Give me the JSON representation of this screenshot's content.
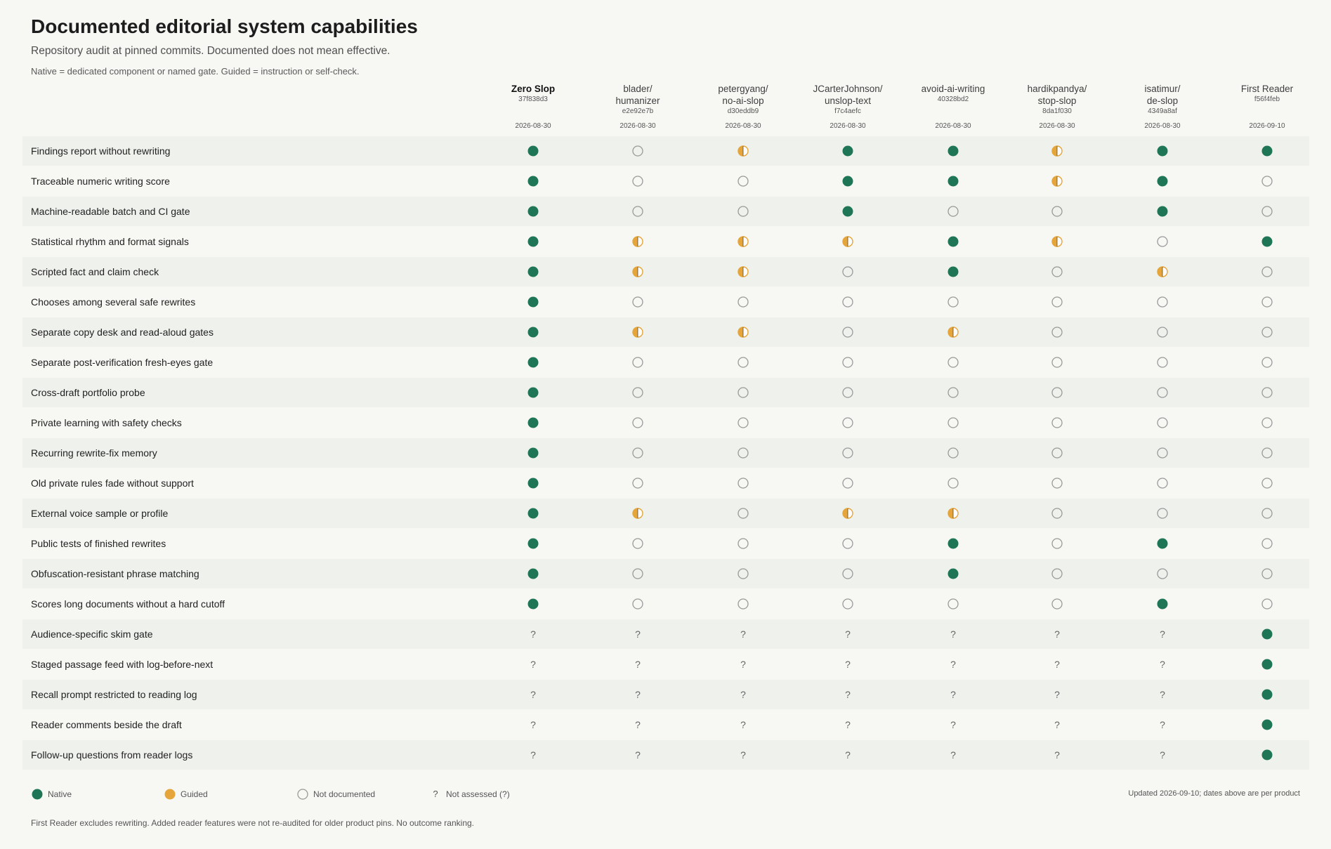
{
  "header": {
    "title": "Documented editorial system capabilities",
    "subtitle": "Repository audit at pinned commits. Documented does not mean effective.",
    "note": "Native = dedicated component or named gate. Guided = instruction or self-check."
  },
  "colors": {
    "native": "#1f7656",
    "guided": "#e6a53a",
    "not_documented_stroke": "#9a9a9a",
    "row_shade": "#eff1ed",
    "background": "#f7f7f4"
  },
  "legend": {
    "native": "Native",
    "guided": "Guided",
    "not_documented": "Not documented",
    "not_assessed_symbol": "?",
    "not_assessed": "Not assessed (?)"
  },
  "updated_note": "Updated 2026-09-10; dates above are per product",
  "footer": "First Reader excludes rewriting. Added reader features were not re-audited for older product pins. No outcome ranking.",
  "chart_data": {
    "type": "table",
    "value_key": {
      "N": "Native",
      "G": "Guided",
      "-": "Not documented",
      "?": "Not assessed"
    },
    "columns": [
      {
        "name": [
          "Zero Slop"
        ],
        "commit": "37f838d3",
        "date": "2026-08-30",
        "primary": true
      },
      {
        "name": [
          "blader/",
          "humanizer"
        ],
        "commit": "e2e92e7b",
        "date": "2026-08-30"
      },
      {
        "name": [
          "petergyang/",
          "no-ai-slop"
        ],
        "commit": "d30eddb9",
        "date": "2026-08-30"
      },
      {
        "name": [
          "JCarterJohnson/",
          "unslop-text"
        ],
        "commit": "f7c4aefc",
        "date": "2026-08-30"
      },
      {
        "name": [
          "avoid-ai-writing"
        ],
        "commit": "40328bd2",
        "date": "2026-08-30"
      },
      {
        "name": [
          "hardikpandya/",
          "stop-slop"
        ],
        "commit": "8da1f030",
        "date": "2026-08-30"
      },
      {
        "name": [
          "isatimur/",
          "de-slop"
        ],
        "commit": "4349a8af",
        "date": "2026-08-30"
      },
      {
        "name": [
          "First Reader"
        ],
        "commit": "f56f4feb",
        "date": "2026-09-10"
      }
    ],
    "rows": [
      {
        "label": "Findings report without rewriting",
        "values": [
          "N",
          "-",
          "G",
          "N",
          "N",
          "G",
          "N",
          "N"
        ]
      },
      {
        "label": "Traceable numeric writing score",
        "values": [
          "N",
          "-",
          "-",
          "N",
          "N",
          "G",
          "N",
          "-"
        ]
      },
      {
        "label": "Machine-readable batch and CI gate",
        "values": [
          "N",
          "-",
          "-",
          "N",
          "-",
          "-",
          "N",
          "-"
        ]
      },
      {
        "label": "Statistical rhythm and format signals",
        "values": [
          "N",
          "G",
          "G",
          "G",
          "N",
          "G",
          "-",
          "N"
        ]
      },
      {
        "label": "Scripted fact and claim check",
        "values": [
          "N",
          "G",
          "G",
          "-",
          "N",
          "-",
          "G",
          "-"
        ]
      },
      {
        "label": "Chooses among several safe rewrites",
        "values": [
          "N",
          "-",
          "-",
          "-",
          "-",
          "-",
          "-",
          "-"
        ]
      },
      {
        "label": "Separate copy desk and read-aloud gates",
        "values": [
          "N",
          "G",
          "G",
          "-",
          "G",
          "-",
          "-",
          "-"
        ]
      },
      {
        "label": "Separate post-verification fresh-eyes gate",
        "values": [
          "N",
          "-",
          "-",
          "-",
          "-",
          "-",
          "-",
          "-"
        ]
      },
      {
        "label": "Cross-draft portfolio probe",
        "values": [
          "N",
          "-",
          "-",
          "-",
          "-",
          "-",
          "-",
          "-"
        ]
      },
      {
        "label": "Private learning with safety checks",
        "values": [
          "N",
          "-",
          "-",
          "-",
          "-",
          "-",
          "-",
          "-"
        ]
      },
      {
        "label": "Recurring rewrite-fix memory",
        "values": [
          "N",
          "-",
          "-",
          "-",
          "-",
          "-",
          "-",
          "-"
        ]
      },
      {
        "label": "Old private rules fade without support",
        "values": [
          "N",
          "-",
          "-",
          "-",
          "-",
          "-",
          "-",
          "-"
        ]
      },
      {
        "label": "External voice sample or profile",
        "values": [
          "N",
          "G",
          "-",
          "G",
          "G",
          "-",
          "-",
          "-"
        ]
      },
      {
        "label": "Public tests of finished rewrites",
        "values": [
          "N",
          "-",
          "-",
          "-",
          "N",
          "-",
          "N",
          "-"
        ]
      },
      {
        "label": "Obfuscation-resistant phrase matching",
        "values": [
          "N",
          "-",
          "-",
          "-",
          "N",
          "-",
          "-",
          "-"
        ]
      },
      {
        "label": "Scores long documents without a hard cutoff",
        "values": [
          "N",
          "-",
          "-",
          "-",
          "-",
          "-",
          "N",
          "-"
        ]
      },
      {
        "label": "Audience-specific skim gate",
        "values": [
          "?",
          "?",
          "?",
          "?",
          "?",
          "?",
          "?",
          "N"
        ]
      },
      {
        "label": "Staged passage feed with log-before-next",
        "values": [
          "?",
          "?",
          "?",
          "?",
          "?",
          "?",
          "?",
          "N"
        ]
      },
      {
        "label": "Recall prompt restricted to reading log",
        "values": [
          "?",
          "?",
          "?",
          "?",
          "?",
          "?",
          "?",
          "N"
        ]
      },
      {
        "label": "Reader comments beside the draft",
        "values": [
          "?",
          "?",
          "?",
          "?",
          "?",
          "?",
          "?",
          "N"
        ]
      },
      {
        "label": "Follow-up questions from reader logs",
        "values": [
          "?",
          "?",
          "?",
          "?",
          "?",
          "?",
          "?",
          "N"
        ]
      }
    ]
  }
}
